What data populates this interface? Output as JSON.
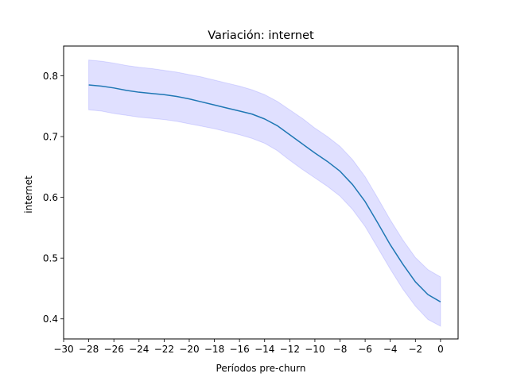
{
  "chart_data": {
    "type": "line",
    "title": "Variación: internet",
    "xlabel": "Períodos pre-churn",
    "ylabel": "internet",
    "xlim": [
      -30,
      1.4
    ],
    "ylim": [
      0.367,
      0.849
    ],
    "xticks": [
      -30,
      -28,
      -26,
      -24,
      -22,
      -20,
      -18,
      -16,
      -14,
      -12,
      -10,
      -8,
      -6,
      -4,
      -2,
      0
    ],
    "xtick_labels": [
      "−30",
      "−28",
      "−26",
      "−24",
      "−22",
      "−20",
      "−18",
      "−16",
      "−14",
      "−12",
      "−10",
      "−8",
      "−6",
      "−4",
      "−2",
      "0"
    ],
    "yticks": [
      0.4,
      0.5,
      0.6,
      0.7,
      0.8
    ],
    "ytick_labels": [
      "0.4",
      "0.5",
      "0.6",
      "0.7",
      "0.8"
    ],
    "grid": false,
    "series": [
      {
        "color": "#1f77b4",
        "band_color": "#0000ff",
        "x": [
          -28,
          -27,
          -26,
          -25,
          -24,
          -23,
          -22,
          -21,
          -20,
          -19,
          -18,
          -17,
          -16,
          -15,
          -14,
          -13,
          -12,
          -11,
          -10,
          -9,
          -8,
          -7,
          -6,
          -5,
          -4,
          -3,
          -2,
          -1,
          0
        ],
        "values": [
          0.785,
          0.783,
          0.78,
          0.776,
          0.773,
          0.771,
          0.769,
          0.766,
          0.762,
          0.757,
          0.752,
          0.747,
          0.742,
          0.737,
          0.729,
          0.718,
          0.703,
          0.688,
          0.673,
          0.659,
          0.643,
          0.621,
          0.593,
          0.558,
          0.522,
          0.49,
          0.461,
          0.44,
          0.428
        ],
        "lower": [
          0.744,
          0.742,
          0.738,
          0.735,
          0.732,
          0.73,
          0.728,
          0.725,
          0.721,
          0.717,
          0.713,
          0.708,
          0.703,
          0.697,
          0.689,
          0.677,
          0.661,
          0.646,
          0.632,
          0.618,
          0.602,
          0.58,
          0.552,
          0.517,
          0.482,
          0.449,
          0.421,
          0.399,
          0.388
        ],
        "upper": [
          0.826,
          0.824,
          0.821,
          0.817,
          0.814,
          0.812,
          0.809,
          0.806,
          0.802,
          0.798,
          0.793,
          0.788,
          0.783,
          0.777,
          0.769,
          0.758,
          0.744,
          0.73,
          0.714,
          0.7,
          0.684,
          0.662,
          0.634,
          0.599,
          0.563,
          0.53,
          0.501,
          0.481,
          0.469
        ]
      }
    ]
  }
}
